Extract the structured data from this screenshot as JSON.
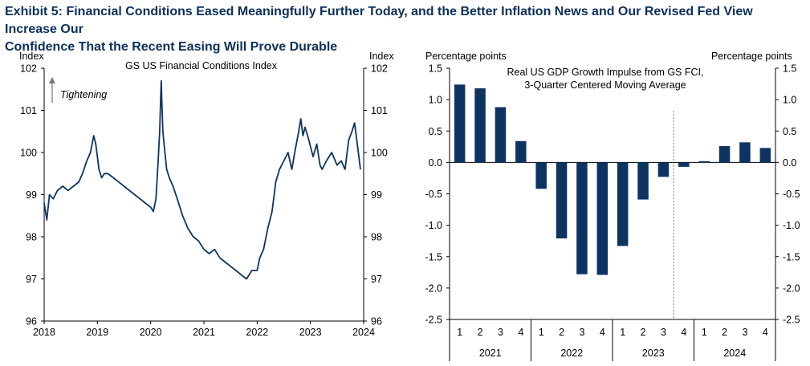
{
  "exhibit": {
    "title_line1": "Exhibit 5: Financial Conditions Eased Meaningfully Further Today, and the Better Inflation News and Our Revised Fed View Increase Our",
    "title_line2": "Confidence That the Recent Easing Will Prove Durable"
  },
  "colors": {
    "series": "#0d3461",
    "title": "#0b2f5b",
    "axis": "#000000"
  },
  "chart_data": [
    {
      "type": "line",
      "title": "GS US Financial Conditions Index",
      "ylabel_left": "Index",
      "ylabel_right": "Index",
      "annotation": "Tightening",
      "annotation_icon": "up-arrow-icon",
      "ylim": [
        96,
        102
      ],
      "yticks": [
        96,
        97,
        98,
        99,
        100,
        101,
        102
      ],
      "xlim": [
        2018,
        2024
      ],
      "xticks": [
        "2018",
        "2019",
        "2020",
        "2021",
        "2022",
        "2023",
        "2024"
      ],
      "series": [
        {
          "x": [
            2018.0,
            2018.05,
            2018.1,
            2018.17,
            2018.25,
            2018.35,
            2018.45,
            2018.55,
            2018.65,
            2018.72,
            2018.8,
            2018.87,
            2018.93,
            2018.97,
            2019.03,
            2019.08,
            2019.13,
            2019.2,
            2019.3,
            2019.4,
            2019.5,
            2019.6,
            2019.7,
            2019.8,
            2019.9,
            2020.0,
            2020.05,
            2020.1,
            2020.14,
            2020.17,
            2020.19,
            2020.2,
            2020.21,
            2020.23,
            2020.26,
            2020.3,
            2020.35,
            2020.42,
            2020.5,
            2020.6,
            2020.7,
            2020.8,
            2020.9,
            2021.0,
            2021.1,
            2021.2,
            2021.3,
            2021.4,
            2021.5,
            2021.6,
            2021.7,
            2021.8,
            2021.9,
            2022.0,
            2022.05,
            2022.12,
            2022.2,
            2022.28,
            2022.35,
            2022.42,
            2022.5,
            2022.58,
            2022.65,
            2022.72,
            2022.78,
            2022.82,
            2022.86,
            2022.9,
            2022.97,
            2023.05,
            2023.12,
            2023.18,
            2023.22,
            2023.3,
            2023.4,
            2023.5,
            2023.58,
            2023.65,
            2023.72,
            2023.78,
            2023.83,
            2023.87,
            2023.9,
            2023.94
          ],
          "y": [
            98.8,
            98.4,
            99.0,
            98.9,
            99.1,
            99.2,
            99.1,
            99.2,
            99.3,
            99.5,
            99.8,
            100.0,
            100.4,
            100.2,
            99.6,
            99.4,
            99.5,
            99.5,
            99.4,
            99.3,
            99.2,
            99.1,
            99.0,
            98.9,
            98.8,
            98.7,
            98.6,
            98.9,
            99.8,
            100.5,
            101.4,
            101.7,
            101.2,
            100.5,
            100.1,
            99.6,
            99.4,
            99.2,
            98.9,
            98.5,
            98.2,
            98.0,
            97.9,
            97.7,
            97.6,
            97.7,
            97.5,
            97.4,
            97.3,
            97.2,
            97.1,
            97.0,
            97.2,
            97.2,
            97.5,
            97.7,
            98.2,
            98.6,
            99.3,
            99.6,
            99.8,
            100.0,
            99.6,
            100.1,
            100.5,
            100.8,
            100.4,
            100.6,
            100.3,
            99.9,
            100.2,
            99.7,
            99.6,
            99.8,
            100.0,
            99.7,
            99.8,
            99.6,
            100.3,
            100.5,
            100.7,
            100.3,
            100.0,
            99.6
          ]
        }
      ]
    },
    {
      "type": "bar",
      "title_line1": "Real US GDP Growth Impulse from GS FCI,",
      "title_line2": "3-Quarter Centered Moving Average",
      "ylabel_left": "Percentage points",
      "ylabel_right": "Percentage points",
      "ylim": [
        -2.5,
        1.5
      ],
      "yticks": [
        "-2.5",
        "-2.0",
        "-1.5",
        "-1.0",
        "-0.5",
        "0.0",
        "0.5",
        "1.0",
        "1.5"
      ],
      "categories": [
        "1",
        "2",
        "3",
        "4",
        "1",
        "2",
        "3",
        "4",
        "1",
        "2",
        "3",
        "4",
        "1",
        "2",
        "3",
        "4"
      ],
      "groups": [
        "2021",
        "2022",
        "2023",
        "2024"
      ],
      "values": [
        1.24,
        1.18,
        0.88,
        0.34,
        -0.42,
        -1.21,
        -1.78,
        -1.79,
        -1.33,
        -0.59,
        -0.23,
        -0.07,
        0.02,
        0.26,
        0.32,
        0.23
      ],
      "forecast_divider_after_index": 10
    }
  ]
}
